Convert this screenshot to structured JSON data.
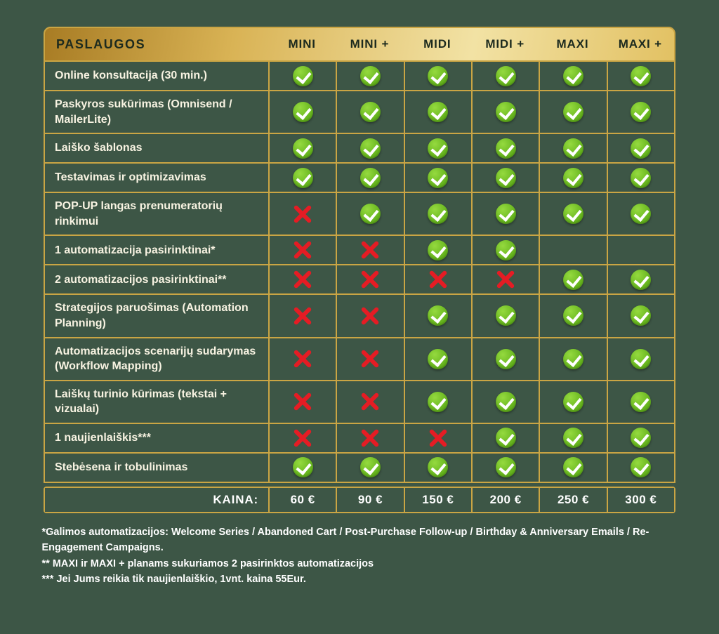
{
  "chart_data": {
    "type": "table",
    "title": "PASLAUGOS pricing comparison table",
    "header": {
      "label": "PASLAUGOS",
      "plans": [
        "MINI",
        "MINI +",
        "MIDI",
        "MIDI +",
        "MAXI",
        "MAXI +"
      ]
    },
    "value_legend": {
      "check": "included",
      "cross": "not included",
      "": "not applicable"
    },
    "rows": [
      {
        "label": "Online konsultacija (30 min.)",
        "values": [
          "check",
          "check",
          "check",
          "check",
          "check",
          "check"
        ]
      },
      {
        "label": "Paskyros sukūrimas (Omnisend / MailerLite)",
        "values": [
          "check",
          "check",
          "check",
          "check",
          "check",
          "check"
        ]
      },
      {
        "label": "Laiško šablonas",
        "values": [
          "check",
          "check",
          "check",
          "check",
          "check",
          "check"
        ]
      },
      {
        "label": "Testavimas ir optimizavimas",
        "values": [
          "check",
          "check",
          "check",
          "check",
          "check",
          "check"
        ]
      },
      {
        "label": "POP-UP langas prenumeratorių rinkimui",
        "values": [
          "cross",
          "check",
          "check",
          "check",
          "check",
          "check"
        ]
      },
      {
        "label": "1 automatizacija pasirinktinai*",
        "values": [
          "cross",
          "cross",
          "check",
          "check",
          "",
          ""
        ]
      },
      {
        "label": "2 automatizacijos pasirinktinai**",
        "values": [
          "cross",
          "cross",
          "cross",
          "cross",
          "check",
          "check"
        ]
      },
      {
        "label": "Strategijos paruošimas (Automation Planning)",
        "values": [
          "cross",
          "cross",
          "check",
          "check",
          "check",
          "check"
        ]
      },
      {
        "label": "Automatizacijos scenarijų sudarymas (Workflow Mapping)",
        "values": [
          "cross",
          "cross",
          "check",
          "check",
          "check",
          "check"
        ]
      },
      {
        "label": "Laiškų turinio kūrimas (tekstai + vizualai)",
        "values": [
          "cross",
          "cross",
          "check",
          "check",
          "check",
          "check"
        ]
      },
      {
        "label": "1 naujienlaiškis***",
        "values": [
          "cross",
          "cross",
          "cross",
          "check",
          "check",
          "check"
        ]
      },
      {
        "label": "Stebėsena ir tobulinimas",
        "values": [
          "check",
          "check",
          "check",
          "check",
          "check",
          "check"
        ]
      }
    ],
    "price_row": {
      "label": "KAINA:",
      "prices": [
        "60 €",
        "90 €",
        "150 €",
        "200 €",
        "250 €",
        "300 €"
      ]
    },
    "footnotes": [
      "*Galimos automatizacijos: Welcome Series / Abandoned Cart / Post-Purchase Follow-up / Birthday & Anniversary Emails / Re-Engagement Campaigns.",
      "** MAXI ir MAXI + planams sukuriamos 2 pasirinktos automatizacijos",
      "*** Jei Jums reikia tik naujienlaiškio, 1vnt. kaina 55Eur."
    ]
  },
  "colors": {
    "background": "#3d5646",
    "gold_border": "#caa544",
    "header_gradient_start": "#a87c24",
    "header_gradient_end": "#e2c163",
    "header_text": "#1c2a1e",
    "label_text": "#f8f3e2",
    "check_green": "#68b61f",
    "cross_red": "#e51c24",
    "price_text": "#ffffff"
  }
}
